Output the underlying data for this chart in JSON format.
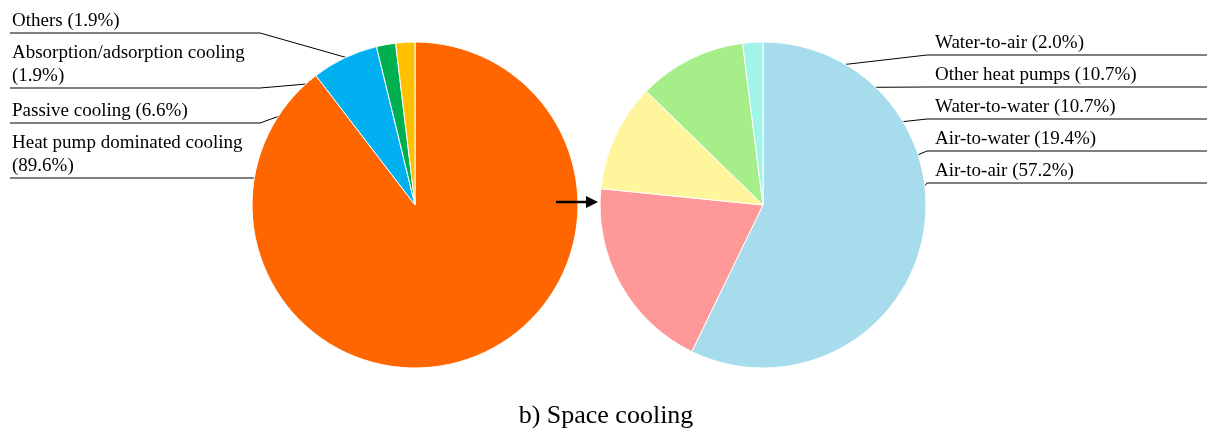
{
  "chart_data": [
    {
      "type": "pie",
      "categories": [
        "Heat pump dominated cooling",
        "Passive cooling",
        "Absorption/adsorption cooling",
        "Others"
      ],
      "values": [
        89.6,
        6.6,
        1.9,
        1.9
      ],
      "value_labels": [
        "(89.6%)",
        "(6.6%)",
        "(1.9%)",
        "(1.9%)"
      ],
      "colors": [
        "#ff6600",
        "#00b0f0",
        "#00b050",
        "#ffc000"
      ],
      "legend": false,
      "annotations": [
        "b) Space cooling"
      ]
    },
    {
      "type": "pie",
      "categories": [
        "Air-to-air",
        "Air-to-water",
        "Water-to-water",
        "Other heat pumps",
        "Water-to-air"
      ],
      "values": [
        57.2,
        19.4,
        10.7,
        10.7,
        2.0
      ],
      "value_labels": [
        "(57.2%)",
        "(19.4%)",
        "(10.7%)",
        "(10.7%)",
        "(2.0%)"
      ],
      "colors": [
        "#a6dcec",
        "#ff9999",
        "#fff59d",
        "#a5ee8a",
        "#a0f5e8"
      ],
      "legend": false
    }
  ]
}
